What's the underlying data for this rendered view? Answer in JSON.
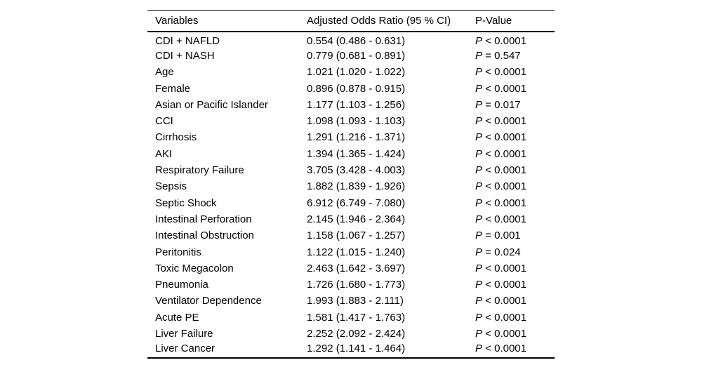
{
  "table": {
    "columns": [
      "Variables",
      "Adjusted Odds Ratio (95 % CI)",
      "P-Value"
    ],
    "p_symbol": "P",
    "rows": [
      {
        "variable": "CDI + NAFLD",
        "aor": "0.554 (0.486 - 0.631)",
        "p": "< 0.0001"
      },
      {
        "variable": "CDI + NASH",
        "aor": "0.779 (0.681 - 0.891)",
        "p": "= 0.547"
      },
      {
        "variable": "Age",
        "aor": "1.021 (1.020 - 1.022)",
        "p": "< 0.0001"
      },
      {
        "variable": "Female",
        "aor": "0.896 (0.878 - 0.915)",
        "p": "< 0.0001"
      },
      {
        "variable": "Asian or Pacific Islander",
        "aor": "1.177 (1.103 - 1.256)",
        "p": "= 0.017"
      },
      {
        "variable": "CCI",
        "aor": "1.098 (1.093 - 1.103)",
        "p": "< 0.0001"
      },
      {
        "variable": "Cirrhosis",
        "aor": "1.291 (1.216 - 1.371)",
        "p": "< 0.0001"
      },
      {
        "variable": "AKI",
        "aor": "1.394 (1.365 - 1.424)",
        "p": "< 0.0001"
      },
      {
        "variable": "Respiratory Failure",
        "aor": "3.705 (3.428 - 4.003)",
        "p": "< 0.0001"
      },
      {
        "variable": "Sepsis",
        "aor": "1.882 (1.839 - 1.926)",
        "p": "< 0.0001"
      },
      {
        "variable": "Septic Shock",
        "aor": "6.912 (6.749 - 7.080)",
        "p": "< 0.0001"
      },
      {
        "variable": "Intestinal Perforation",
        "aor": "2.145 (1.946 - 2.364)",
        "p": "< 0.0001"
      },
      {
        "variable": "Intestinal Obstruction",
        "aor": "1.158 (1.067 - 1.257)",
        "p": "= 0.001"
      },
      {
        "variable": "Peritonitis",
        "aor": "1.122 (1.015 - 1.240)",
        "p": "= 0.024"
      },
      {
        "variable": "Toxic Megacolon",
        "aor": "2.463 (1.642 - 3.697)",
        "p": "< 0.0001"
      },
      {
        "variable": "Pneumonia",
        "aor": "1.726 (1.680 - 1.773)",
        "p": "< 0.0001"
      },
      {
        "variable": "Ventilator Dependence",
        "aor": "1.993 (1.883 - 2.111)",
        "p": "< 0.0001"
      },
      {
        "variable": "Acute PE",
        "aor": "1.581 (1.417 - 1.763)",
        "p": "< 0.0001"
      },
      {
        "variable": "Liver Failure",
        "aor": "2.252 (2.092 - 2.424)",
        "p": "< 0.0001"
      },
      {
        "variable": "Liver Cancer",
        "aor": "1.292 (1.141 - 1.464)",
        "p": "< 0.0001"
      }
    ]
  },
  "chart_data": {
    "type": "table",
    "title": "",
    "columns": [
      "Variables",
      "Adjusted Odds Ratio (95 % CI)",
      "P-Value"
    ],
    "series": [
      {
        "name": "adjusted_odds_ratio",
        "values": [
          0.554,
          0.779,
          1.021,
          0.896,
          1.177,
          1.098,
          1.291,
          1.394,
          3.705,
          1.882,
          6.912,
          2.145,
          1.158,
          1.122,
          2.463,
          1.726,
          1.993,
          1.581,
          2.252,
          1.292
        ]
      },
      {
        "name": "ci_low",
        "values": [
          0.486,
          0.681,
          1.02,
          0.878,
          1.103,
          1.093,
          1.216,
          1.365,
          3.428,
          1.839,
          6.749,
          1.946,
          1.067,
          1.015,
          1.642,
          1.68,
          1.883,
          1.417,
          2.092,
          1.141
        ]
      },
      {
        "name": "ci_high",
        "values": [
          0.631,
          0.891,
          1.022,
          0.915,
          1.256,
          1.103,
          1.371,
          1.424,
          4.003,
          1.926,
          7.08,
          2.364,
          1.257,
          1.24,
          3.697,
          1.773,
          2.111,
          1.763,
          2.424,
          1.464
        ]
      }
    ],
    "categories": [
      "CDI + NAFLD",
      "CDI + NASH",
      "Age",
      "Female",
      "Asian or Pacific Islander",
      "CCI",
      "Cirrhosis",
      "AKI",
      "Respiratory Failure",
      "Sepsis",
      "Septic Shock",
      "Intestinal Perforation",
      "Intestinal Obstruction",
      "Peritonitis",
      "Toxic Megacolon",
      "Pneumonia",
      "Ventilator Dependence",
      "Acute PE",
      "Liver Failure",
      "Liver Cancer"
    ],
    "p_values": [
      "< 0.0001",
      "= 0.547",
      "< 0.0001",
      "< 0.0001",
      "= 0.017",
      "< 0.0001",
      "< 0.0001",
      "< 0.0001",
      "< 0.0001",
      "< 0.0001",
      "< 0.0001",
      "< 0.0001",
      "= 0.001",
      "= 0.024",
      "< 0.0001",
      "< 0.0001",
      "< 0.0001",
      "< 0.0001",
      "< 0.0001",
      "< 0.0001"
    ]
  }
}
